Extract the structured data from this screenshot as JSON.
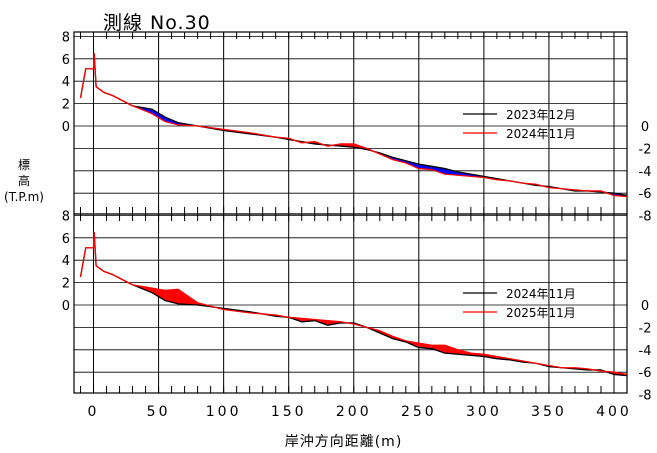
{
  "page": {
    "title": "測線 No.30",
    "ylabel_lines": [
      "標",
      "高",
      "(T.P.m)"
    ],
    "xlabel": "岸沖方向距離(m)"
  },
  "chart_data": [
    {
      "type": "line",
      "panel": "top",
      "xlim": [
        -15,
        410
      ],
      "ylim": [
        -8,
        8
      ],
      "x_ticks": [
        0,
        50,
        100,
        150,
        200,
        250,
        300,
        350,
        400
      ],
      "y_ticks_left": [
        8,
        6,
        4,
        2,
        0
      ],
      "y_ticks_right": [
        0,
        -2,
        -4,
        -6,
        -8
      ],
      "grid": true,
      "legend_position": "right",
      "fill_between": true,
      "series": [
        {
          "name": "2023年12月",
          "color": "#000000",
          "x": [
            -10,
            -6,
            0,
            0.5,
            2,
            8,
            15,
            20,
            30,
            45,
            55,
            65,
            80,
            100,
            120,
            140,
            150,
            160,
            170,
            180,
            190,
            200,
            210,
            220,
            230,
            240,
            250,
            260,
            270,
            280,
            290,
            300,
            310,
            320,
            330,
            340,
            350,
            360,
            370,
            380,
            390,
            400,
            410
          ],
          "y": [
            2.5,
            5.1,
            5.1,
            6.5,
            3.5,
            3.0,
            2.7,
            2.4,
            1.8,
            1.5,
            0.8,
            0.3,
            0.0,
            -0.4,
            -0.7,
            -1.0,
            -1.2,
            -1.4,
            -1.6,
            -1.7,
            -1.8,
            -1.9,
            -2.1,
            -2.4,
            -2.8,
            -3.1,
            -3.4,
            -3.6,
            -3.8,
            -4.1,
            -4.3,
            -4.5,
            -4.7,
            -4.9,
            -5.1,
            -5.3,
            -5.4,
            -5.6,
            -5.8,
            -5.8,
            -5.9,
            -6.0,
            -6.2
          ]
        },
        {
          "name": "2024年11月",
          "color": "#ff0000",
          "x": [
            -10,
            -6,
            0,
            0.5,
            2,
            8,
            15,
            20,
            30,
            45,
            55,
            65,
            80,
            100,
            120,
            140,
            150,
            160,
            170,
            180,
            190,
            200,
            210,
            220,
            230,
            240,
            250,
            260,
            270,
            280,
            290,
            300,
            310,
            320,
            330,
            340,
            350,
            360,
            370,
            380,
            390,
            400,
            410
          ],
          "y": [
            2.5,
            5.1,
            5.1,
            6.5,
            3.5,
            3.0,
            2.7,
            2.4,
            1.8,
            1.1,
            0.4,
            0.1,
            0.0,
            -0.3,
            -0.6,
            -1.0,
            -1.1,
            -1.5,
            -1.4,
            -1.8,
            -1.6,
            -1.6,
            -2.0,
            -2.5,
            -3.0,
            -3.3,
            -3.8,
            -3.9,
            -4.3,
            -4.4,
            -4.5,
            -4.6,
            -4.8,
            -4.9,
            -5.1,
            -5.2,
            -5.5,
            -5.6,
            -5.7,
            -5.8,
            -5.8,
            -6.2,
            -6.3
          ]
        }
      ]
    },
    {
      "type": "line",
      "panel": "bottom",
      "xlim": [
        -15,
        410
      ],
      "ylim": [
        -8,
        8
      ],
      "x_ticks": [
        0,
        50,
        100,
        150,
        200,
        250,
        300,
        350,
        400
      ],
      "x_tick_labels": [
        "0",
        "50",
        "100",
        "150",
        "200",
        "250",
        "300",
        "350",
        "400"
      ],
      "y_ticks_left": [
        8,
        6,
        4,
        2,
        0
      ],
      "y_ticks_right": [
        0,
        -2,
        -4,
        -6,
        -8
      ],
      "grid": true,
      "legend_position": "right",
      "fill_between": true,
      "series": [
        {
          "name": "2024年11月",
          "color": "#000000",
          "x": [
            -10,
            -6,
            0,
            0.5,
            2,
            8,
            15,
            20,
            30,
            45,
            55,
            65,
            80,
            100,
            120,
            140,
            150,
            160,
            170,
            180,
            190,
            200,
            210,
            220,
            230,
            240,
            250,
            260,
            270,
            280,
            290,
            300,
            310,
            320,
            330,
            340,
            350,
            360,
            370,
            380,
            390,
            400,
            410
          ],
          "y": [
            2.5,
            5.1,
            5.1,
            6.5,
            3.5,
            3.0,
            2.7,
            2.4,
            1.8,
            1.1,
            0.4,
            0.1,
            0.0,
            -0.3,
            -0.6,
            -1.0,
            -1.1,
            -1.5,
            -1.4,
            -1.8,
            -1.6,
            -1.6,
            -2.0,
            -2.5,
            -3.0,
            -3.3,
            -3.8,
            -3.9,
            -4.3,
            -4.4,
            -4.5,
            -4.6,
            -4.8,
            -4.9,
            -5.1,
            -5.2,
            -5.5,
            -5.6,
            -5.7,
            -5.8,
            -5.8,
            -6.2,
            -6.3
          ]
        },
        {
          "name": "2025年11月",
          "color": "#ff0000",
          "x": [
            -10,
            -6,
            0,
            0.5,
            2,
            8,
            15,
            20,
            30,
            45,
            55,
            65,
            80,
            100,
            120,
            140,
            150,
            160,
            170,
            180,
            190,
            200,
            210,
            220,
            230,
            240,
            250,
            260,
            270,
            280,
            290,
            300,
            310,
            320,
            330,
            340,
            350,
            360,
            370,
            380,
            390,
            400,
            410
          ],
          "y": [
            2.5,
            5.1,
            5.1,
            6.5,
            3.5,
            3.0,
            2.7,
            2.4,
            1.8,
            1.5,
            1.3,
            1.4,
            0.2,
            -0.4,
            -0.7,
            -0.9,
            -1.1,
            -1.2,
            -1.3,
            -1.4,
            -1.5,
            -1.7,
            -2.0,
            -2.3,
            -2.8,
            -3.2,
            -3.4,
            -3.6,
            -3.6,
            -4.0,
            -4.3,
            -4.4,
            -4.6,
            -4.8,
            -5.0,
            -5.2,
            -5.4,
            -5.6,
            -5.6,
            -5.7,
            -5.9,
            -6.0,
            -6.2
          ]
        }
      ]
    }
  ]
}
